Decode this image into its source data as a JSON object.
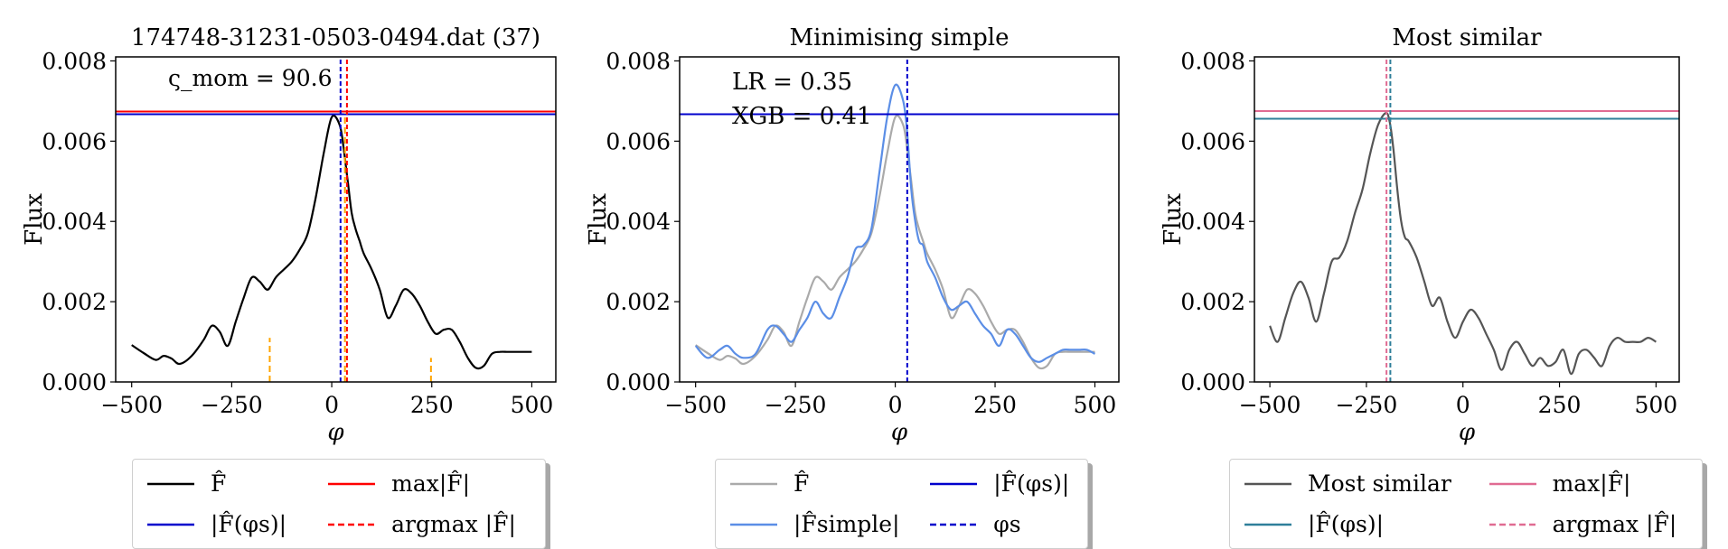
{
  "chart_data": [
    {
      "type": "line",
      "title": "174748-31231-0503-0494.dat (37)",
      "xlabel": "φ",
      "ylabel": "Flux",
      "xlim": [
        -540,
        560
      ],
      "ylim": [
        0,
        0.0081
      ],
      "xticks": [
        -500,
        -250,
        0,
        250,
        500
      ],
      "xtick_labels": [
        "−500",
        "−250",
        "0",
        "250",
        "500"
      ],
      "yticks": [
        0,
        0.002,
        0.004,
        0.006,
        0.008
      ],
      "ytick_labels": [
        "0.000",
        "0.002",
        "0.004",
        "0.006",
        "0.008"
      ],
      "grid": false,
      "annotation": "ς_mom = 90.6",
      "series": [
        {
          "name": "F̂",
          "color": "#000000",
          "style": "solid",
          "x": [
            -500,
            -470,
            -440,
            -420,
            -400,
            -380,
            -350,
            -320,
            -300,
            -280,
            -260,
            -240,
            -220,
            -200,
            -180,
            -160,
            -140,
            -120,
            -100,
            -80,
            -60,
            -40,
            -20,
            0,
            20,
            30,
            40,
            50,
            60,
            70,
            80,
            100,
            120,
            140,
            160,
            180,
            200,
            220,
            240,
            260,
            280,
            300,
            320,
            340,
            360,
            380,
            400,
            420,
            440,
            460,
            480,
            500
          ],
          "y": [
            0.00092,
            0.00072,
            0.00055,
            0.00065,
            0.00058,
            0.00045,
            0.00065,
            0.00105,
            0.0014,
            0.00125,
            0.0009,
            0.0015,
            0.0021,
            0.0026,
            0.0025,
            0.0023,
            0.0026,
            0.0028,
            0.003,
            0.0033,
            0.0037,
            0.0046,
            0.0057,
            0.0066,
            0.0064,
            0.0058,
            0.005,
            0.0042,
            0.0038,
            0.0035,
            0.0032,
            0.0028,
            0.0023,
            0.0016,
            0.0019,
            0.0023,
            0.0022,
            0.0019,
            0.0015,
            0.0012,
            0.0013,
            0.0013,
            0.001,
            0.0006,
            0.00035,
            0.0004,
            0.0007,
            0.00075,
            0.00075,
            0.00075,
            0.00075,
            0.00075
          ]
        },
        {
          "name": "|F̂(φs)|",
          "color": "#0000cc",
          "style": "hline",
          "y": 0.00667
        },
        {
          "name": "max|F̂|",
          "color": "#ff0000",
          "style": "hline",
          "y": 0.00674
        },
        {
          "name": "argmax |F̂|",
          "color": "#ff0000",
          "style": "dashed-vline",
          "x": 38
        },
        {
          "name": "",
          "color": "#0000cc",
          "style": "dashed-vline",
          "x": 22
        },
        {
          "name": "",
          "color": "#ffa500",
          "style": "dashed-vline",
          "x": 33,
          "ymax": 0.0067
        },
        {
          "name": "",
          "color": "#ffa500",
          "style": "dashed-vline",
          "x": -155,
          "ymax": 0.0011
        },
        {
          "name": "",
          "color": "#ffa500",
          "style": "dashed-vline",
          "x": 248,
          "ymax": 0.0006
        }
      ]
    },
    {
      "type": "line",
      "title": "Minimising simple",
      "xlabel": "φ",
      "ylabel": "Flux",
      "xlim": [
        -540,
        560
      ],
      "ylim": [
        0,
        0.0081
      ],
      "xticks": [
        -500,
        -250,
        0,
        250,
        500
      ],
      "xtick_labels": [
        "−500",
        "−250",
        "0",
        "250",
        "500"
      ],
      "yticks": [
        0,
        0.002,
        0.004,
        0.006,
        0.008
      ],
      "ytick_labels": [
        "0.000",
        "0.002",
        "0.004",
        "0.006",
        "0.008"
      ],
      "grid": false,
      "annotation": [
        "LR = 0.35",
        "XGB = 0.41"
      ],
      "series": [
        {
          "name": "F̂",
          "color": "#aaaaaa",
          "style": "solid",
          "x": [
            -500,
            -470,
            -440,
            -420,
            -400,
            -380,
            -350,
            -320,
            -300,
            -280,
            -260,
            -240,
            -220,
            -200,
            -180,
            -160,
            -140,
            -120,
            -100,
            -80,
            -60,
            -40,
            -20,
            0,
            20,
            30,
            40,
            50,
            60,
            70,
            80,
            100,
            120,
            140,
            160,
            180,
            200,
            220,
            240,
            260,
            280,
            300,
            320,
            340,
            360,
            380,
            400,
            420,
            440,
            460,
            480,
            500
          ],
          "y": [
            0.00092,
            0.00072,
            0.00055,
            0.00065,
            0.00058,
            0.00045,
            0.00065,
            0.00105,
            0.0014,
            0.00125,
            0.0009,
            0.0015,
            0.0021,
            0.0026,
            0.0025,
            0.0023,
            0.0026,
            0.0028,
            0.003,
            0.0033,
            0.0037,
            0.0046,
            0.0057,
            0.0066,
            0.0064,
            0.0058,
            0.005,
            0.0042,
            0.0038,
            0.0035,
            0.0032,
            0.0028,
            0.0023,
            0.0016,
            0.0019,
            0.0023,
            0.0022,
            0.0019,
            0.0015,
            0.0012,
            0.0013,
            0.0013,
            0.001,
            0.0006,
            0.00035,
            0.0004,
            0.0007,
            0.00075,
            0.00075,
            0.00075,
            0.00075,
            0.00075
          ]
        },
        {
          "name": "|F̂simple|",
          "color": "#5b8ee6",
          "style": "solid",
          "x": [
            -500,
            -470,
            -440,
            -420,
            -400,
            -380,
            -350,
            -320,
            -300,
            -280,
            -260,
            -240,
            -220,
            -200,
            -180,
            -160,
            -140,
            -120,
            -100,
            -80,
            -60,
            -40,
            -20,
            0,
            20,
            30,
            40,
            50,
            60,
            70,
            80,
            100,
            120,
            140,
            160,
            180,
            200,
            220,
            240,
            260,
            280,
            300,
            320,
            340,
            360,
            380,
            400,
            420,
            440,
            460,
            480,
            500
          ],
          "y": [
            0.0009,
            0.0006,
            0.0008,
            0.0009,
            0.0007,
            0.0006,
            0.0007,
            0.0013,
            0.0014,
            0.0012,
            0.001,
            0.0013,
            0.0016,
            0.002,
            0.0017,
            0.0016,
            0.0021,
            0.0026,
            0.0033,
            0.0034,
            0.0038,
            0.0052,
            0.0066,
            0.0074,
            0.007,
            0.0062,
            0.0048,
            0.004,
            0.0035,
            0.0034,
            0.003,
            0.0026,
            0.0021,
            0.0018,
            0.0019,
            0.002,
            0.0017,
            0.0014,
            0.0012,
            0.0009,
            0.0013,
            0.0012,
            0.0009,
            0.0006,
            0.0005,
            0.0006,
            0.0007,
            0.0008,
            0.0008,
            0.0008,
            0.0008,
            0.0007
          ]
        },
        {
          "name": "|F̂(φs)|",
          "color": "#0000cc",
          "style": "hline",
          "y": 0.00667
        },
        {
          "name": "φs",
          "color": "#0000cc",
          "style": "dashed-vline",
          "x": 30
        }
      ]
    },
    {
      "type": "line",
      "title": "Most similar",
      "xlabel": "φ",
      "ylabel": "Flux",
      "xlim": [
        -540,
        560
      ],
      "ylim": [
        0,
        0.0081
      ],
      "xticks": [
        -500,
        -250,
        0,
        250,
        500
      ],
      "xtick_labels": [
        "−500",
        "−250",
        "0",
        "250",
        "500"
      ],
      "yticks": [
        0,
        0.002,
        0.004,
        0.006,
        0.008
      ],
      "ytick_labels": [
        "0.000",
        "0.002",
        "0.004",
        "0.006",
        "0.008"
      ],
      "grid": false,
      "series": [
        {
          "name": "Most similar",
          "color": "#555555",
          "style": "solid",
          "x": [
            -500,
            -480,
            -460,
            -440,
            -420,
            -400,
            -380,
            -360,
            -340,
            -320,
            -300,
            -280,
            -260,
            -240,
            -220,
            -200,
            -190,
            -180,
            -170,
            -160,
            -150,
            -140,
            -120,
            -100,
            -80,
            -60,
            -40,
            -20,
            0,
            20,
            40,
            60,
            80,
            100,
            120,
            140,
            160,
            180,
            200,
            220,
            240,
            260,
            280,
            300,
            320,
            340,
            360,
            380,
            400,
            420,
            440,
            460,
            480,
            500
          ],
          "y": [
            0.0014,
            0.001,
            0.0016,
            0.0022,
            0.0025,
            0.0021,
            0.0015,
            0.0022,
            0.003,
            0.0031,
            0.0035,
            0.0042,
            0.0048,
            0.0057,
            0.0064,
            0.0067,
            0.0065,
            0.0058,
            0.0048,
            0.004,
            0.0036,
            0.0035,
            0.0031,
            0.0025,
            0.0019,
            0.0021,
            0.0015,
            0.0011,
            0.0015,
            0.0018,
            0.0016,
            0.0012,
            0.0008,
            0.0003,
            0.0008,
            0.001,
            0.0007,
            0.0004,
            0.0006,
            0.0004,
            0.0005,
            0.0008,
            0.0002,
            0.0007,
            0.0008,
            0.0006,
            0.0004,
            0.0009,
            0.0011,
            0.001,
            0.001,
            0.001,
            0.0011,
            0.001
          ]
        },
        {
          "name": "|F̂(φs)|",
          "color": "#2f7f9a",
          "style": "hline",
          "y": 0.00656
        },
        {
          "name": "max|F̂|",
          "color": "#e06b92",
          "style": "hline",
          "y": 0.00675
        },
        {
          "name": "argmax |F̂|",
          "color": "#e06b92",
          "style": "dashed-vline",
          "x": -198
        },
        {
          "name": "",
          "color": "#2f7f9a",
          "style": "dashed-vline",
          "x": -188
        }
      ]
    }
  ],
  "legends": [
    {
      "items": [
        {
          "label": "F̂",
          "color": "#000000",
          "style": "solid"
        },
        {
          "label": "max|F̂|",
          "color": "#ff0000",
          "style": "solid"
        },
        {
          "label": "|F̂(φs)|",
          "color": "#0000cc",
          "style": "solid"
        },
        {
          "label": "argmax |F̂|",
          "color": "#ff0000",
          "style": "dashed"
        }
      ]
    },
    {
      "items": [
        {
          "label": "F̂",
          "color": "#aaaaaa",
          "style": "solid"
        },
        {
          "label": "|F̂(φs)|",
          "color": "#0000cc",
          "style": "solid"
        },
        {
          "label": "|F̂simple|",
          "color": "#5b8ee6",
          "style": "solid"
        },
        {
          "label": "φs",
          "color": "#0000cc",
          "style": "dashed"
        }
      ]
    },
    {
      "items": [
        {
          "label": "Most similar",
          "color": "#555555",
          "style": "solid"
        },
        {
          "label": "max|F̂|",
          "color": "#e06b92",
          "style": "solid"
        },
        {
          "label": "|F̂(φs)|",
          "color": "#2f7f9a",
          "style": "solid"
        },
        {
          "label": "argmax |F̂|",
          "color": "#e06b92",
          "style": "dashed"
        }
      ]
    }
  ]
}
